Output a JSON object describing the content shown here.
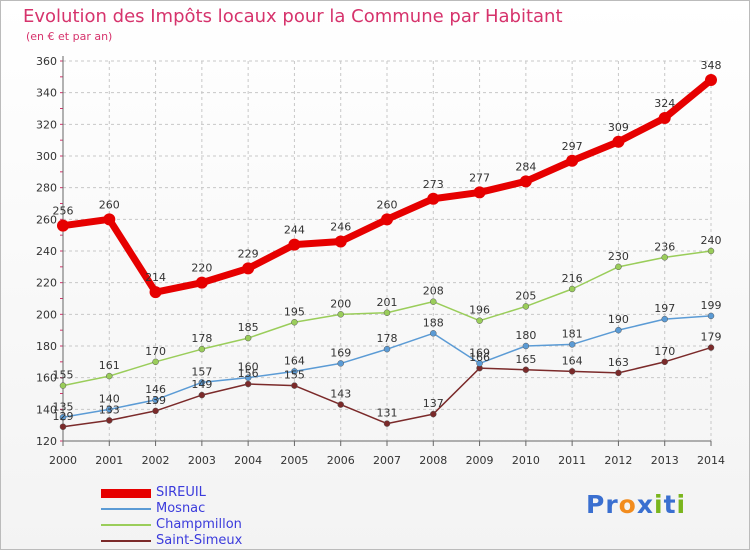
{
  "title": "Evolution des Impôts locaux pour la Commune par Habitant",
  "subtitle": "(en € et par an)",
  "logo": {
    "text": "Proxiti",
    "letters": [
      "P",
      "r",
      "o",
      "x",
      "i",
      "t",
      "i"
    ],
    "colors": [
      "#3a6fd0",
      "#3a6fd0",
      "#f28c1e",
      "#3a6fd0",
      "#7ab51d",
      "#3a6fd0",
      "#7ab51d"
    ]
  },
  "chart_data": {
    "type": "line",
    "title": "Evolution des Impôts locaux pour la Commune par Habitant",
    "subtitle": "(en € et par an)",
    "x": [
      "2000",
      "2001",
      "2002",
      "2003",
      "2004",
      "2005",
      "2006",
      "2007",
      "2008",
      "2009",
      "2010",
      "2011",
      "2012",
      "2013",
      "2014"
    ],
    "yticks": [
      120,
      140,
      160,
      180,
      200,
      220,
      240,
      260,
      280,
      300,
      320,
      340,
      360
    ],
    "ylim": [
      120,
      360
    ],
    "grid": true,
    "legend": "bottom-left",
    "series": [
      {
        "name": "SIREUIL",
        "color": "#e60000",
        "values": [
          256,
          260,
          214,
          220,
          229,
          244,
          246,
          260,
          273,
          277,
          284,
          297,
          309,
          324,
          348
        ],
        "labels": [
          "256",
          "260",
          "214",
          "220",
          "229",
          "244",
          "246",
          "260",
          "273",
          "277",
          "284",
          "297",
          "309",
          "324",
          "348"
        ]
      },
      {
        "name": "Mosnac",
        "color": "#5b9bd5",
        "values": [
          135,
          140,
          146,
          157,
          160,
          164,
          169,
          178,
          188,
          169,
          180,
          181,
          190,
          197,
          199
        ],
        "labels": [
          "135",
          "140",
          "146",
          "157",
          "160",
          "164",
          "169",
          "178",
          "188",
          "169",
          "180",
          "181",
          "190",
          "197",
          "199"
        ]
      },
      {
        "name": "Champmillon",
        "color": "#9acd5a",
        "values": [
          155,
          161,
          170,
          178,
          185,
          195,
          200,
          201,
          208,
          196,
          205,
          216,
          230,
          236,
          240
        ],
        "labels": [
          "155",
          "161",
          "170",
          "178",
          "185",
          "195",
          "200",
          "201",
          "208",
          "196",
          "205",
          "216",
          "230",
          "236",
          "240"
        ]
      },
      {
        "name": "Saint-Simeux",
        "color": "#7b2a2a",
        "values": [
          129,
          133,
          139,
          149,
          156,
          155,
          143,
          131,
          137,
          166,
          165,
          164,
          163,
          170,
          179
        ],
        "labels": [
          "129",
          "133",
          "139",
          "149",
          "156",
          "155",
          "143",
          "131",
          "137",
          "166",
          "165",
          "164",
          "163",
          "170",
          "179"
        ]
      }
    ]
  }
}
